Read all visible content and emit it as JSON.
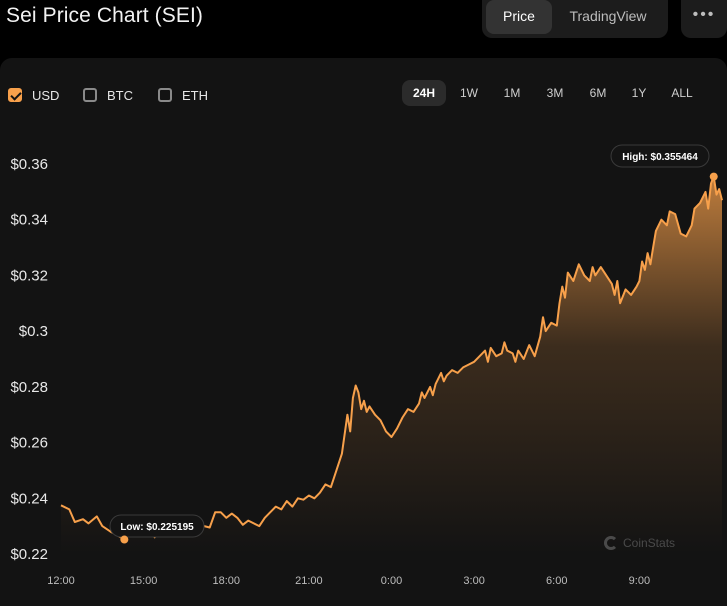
{
  "header": {
    "title": "Sei Price Chart (SEI)",
    "view_tabs": [
      {
        "label": "Price",
        "active": true
      },
      {
        "label": "TradingView",
        "active": false
      }
    ],
    "more_label": "•••"
  },
  "currencies": [
    {
      "label": "USD",
      "checked": true
    },
    {
      "label": "BTC",
      "checked": false
    },
    {
      "label": "ETH",
      "checked": false
    }
  ],
  "ranges": [
    {
      "label": "24H",
      "active": true
    },
    {
      "label": "1W",
      "active": false
    },
    {
      "label": "1M",
      "active": false
    },
    {
      "label": "3M",
      "active": false
    },
    {
      "label": "6M",
      "active": false
    },
    {
      "label": "1Y",
      "active": false
    },
    {
      "label": "ALL",
      "active": false
    }
  ],
  "watermark": "CoinStats",
  "colors": {
    "accent": "#f7a04b",
    "panel": "#131313",
    "background": "#000000"
  },
  "chart_data": {
    "type": "area",
    "title": "",
    "xlabel": "",
    "ylabel": "",
    "ylim": [
      0.22,
      0.36
    ],
    "y_ticks": [
      "$0.36",
      "$0.34",
      "$0.32",
      "$0.3",
      "$0.28",
      "$0.26",
      "$0.24",
      "$0.22"
    ],
    "y_tick_values": [
      0.36,
      0.34,
      0.32,
      0.3,
      0.28,
      0.26,
      0.24,
      0.22
    ],
    "x_ticks": [
      "12:00",
      "15:00",
      "18:00",
      "21:00",
      "0:00",
      "3:00",
      "6:00",
      "9:00"
    ],
    "x_tick_hours": [
      0,
      3,
      6,
      9,
      12,
      15,
      18,
      21
    ],
    "xlim_hours": [
      0,
      24
    ],
    "series": [
      {
        "points": [
          [
            0.0,
            0.2375
          ],
          [
            0.3,
            0.236
          ],
          [
            0.5,
            0.2315
          ],
          [
            0.8,
            0.2325
          ],
          [
            1.0,
            0.231
          ],
          [
            1.3,
            0.2335
          ],
          [
            1.5,
            0.23
          ],
          [
            1.8,
            0.228
          ],
          [
            2.0,
            0.227
          ],
          [
            2.3,
            0.2252
          ],
          [
            2.5,
            0.228
          ],
          [
            2.8,
            0.231
          ],
          [
            3.0,
            0.2285
          ],
          [
            3.2,
            0.231
          ],
          [
            3.4,
            0.226
          ],
          [
            3.6,
            0.229
          ],
          [
            3.8,
            0.23
          ],
          [
            4.0,
            0.228
          ],
          [
            4.2,
            0.229
          ],
          [
            4.4,
            0.23
          ],
          [
            4.6,
            0.228
          ],
          [
            4.8,
            0.229
          ],
          [
            5.0,
            0.231
          ],
          [
            5.2,
            0.23
          ],
          [
            5.4,
            0.2295
          ],
          [
            5.6,
            0.235
          ],
          [
            5.8,
            0.235
          ],
          [
            6.0,
            0.233
          ],
          [
            6.2,
            0.2345
          ],
          [
            6.4,
            0.233
          ],
          [
            6.6,
            0.2305
          ],
          [
            6.8,
            0.232
          ],
          [
            7.0,
            0.231
          ],
          [
            7.2,
            0.23
          ],
          [
            7.4,
            0.233
          ],
          [
            7.6,
            0.235
          ],
          [
            7.8,
            0.237
          ],
          [
            8.0,
            0.236
          ],
          [
            8.2,
            0.239
          ],
          [
            8.4,
            0.237
          ],
          [
            8.6,
            0.24
          ],
          [
            8.8,
            0.2395
          ],
          [
            9.0,
            0.241
          ],
          [
            9.2,
            0.24
          ],
          [
            9.4,
            0.242
          ],
          [
            9.6,
            0.245
          ],
          [
            9.8,
            0.244
          ],
          [
            10.0,
            0.25
          ],
          [
            10.2,
            0.256
          ],
          [
            10.4,
            0.27
          ],
          [
            10.5,
            0.264
          ],
          [
            10.6,
            0.276
          ],
          [
            10.7,
            0.2805
          ],
          [
            10.8,
            0.278
          ],
          [
            10.9,
            0.272
          ],
          [
            11.0,
            0.275
          ],
          [
            11.1,
            0.271
          ],
          [
            11.2,
            0.273
          ],
          [
            11.4,
            0.27
          ],
          [
            11.6,
            0.268
          ],
          [
            11.8,
            0.264
          ],
          [
            12.0,
            0.262
          ],
          [
            12.2,
            0.265
          ],
          [
            12.4,
            0.269
          ],
          [
            12.6,
            0.272
          ],
          [
            12.8,
            0.271
          ],
          [
            13.0,
            0.274
          ],
          [
            13.1,
            0.278
          ],
          [
            13.2,
            0.276
          ],
          [
            13.4,
            0.28
          ],
          [
            13.5,
            0.277
          ],
          [
            13.6,
            0.281
          ],
          [
            13.8,
            0.285
          ],
          [
            13.9,
            0.282
          ],
          [
            14.0,
            0.284
          ],
          [
            14.2,
            0.286
          ],
          [
            14.4,
            0.285
          ],
          [
            14.6,
            0.287
          ],
          [
            14.8,
            0.288
          ],
          [
            15.0,
            0.289
          ],
          [
            15.2,
            0.291
          ],
          [
            15.4,
            0.293
          ],
          [
            15.5,
            0.289
          ],
          [
            15.6,
            0.294
          ],
          [
            15.8,
            0.291
          ],
          [
            16.0,
            0.292
          ],
          [
            16.1,
            0.296
          ],
          [
            16.2,
            0.293
          ],
          [
            16.4,
            0.292
          ],
          [
            16.5,
            0.289
          ],
          [
            16.6,
            0.293
          ],
          [
            16.8,
            0.29
          ],
          [
            17.0,
            0.295
          ],
          [
            17.2,
            0.291
          ],
          [
            17.4,
            0.298
          ],
          [
            17.5,
            0.305
          ],
          [
            17.6,
            0.3
          ],
          [
            17.8,
            0.303
          ],
          [
            18.0,
            0.302
          ],
          [
            18.1,
            0.31
          ],
          [
            18.2,
            0.316
          ],
          [
            18.3,
            0.312
          ],
          [
            18.4,
            0.321
          ],
          [
            18.6,
            0.318
          ],
          [
            18.8,
            0.324
          ],
          [
            19.0,
            0.32
          ],
          [
            19.2,
            0.318
          ],
          [
            19.3,
            0.323
          ],
          [
            19.4,
            0.32
          ],
          [
            19.6,
            0.323
          ],
          [
            19.8,
            0.32
          ],
          [
            20.0,
            0.317
          ],
          [
            20.1,
            0.313
          ],
          [
            20.2,
            0.318
          ],
          [
            20.3,
            0.31
          ],
          [
            20.5,
            0.315
          ],
          [
            20.7,
            0.313
          ],
          [
            20.9,
            0.316
          ],
          [
            21.0,
            0.318
          ],
          [
            21.1,
            0.325
          ],
          [
            21.2,
            0.322
          ],
          [
            21.3,
            0.328
          ],
          [
            21.4,
            0.324
          ],
          [
            21.5,
            0.33
          ],
          [
            21.6,
            0.336
          ],
          [
            21.8,
            0.34
          ],
          [
            22.0,
            0.338
          ],
          [
            22.1,
            0.343
          ],
          [
            22.3,
            0.342
          ],
          [
            22.5,
            0.335
          ],
          [
            22.7,
            0.334
          ],
          [
            22.9,
            0.338
          ],
          [
            23.0,
            0.344
          ],
          [
            23.2,
            0.346
          ],
          [
            23.4,
            0.35
          ],
          [
            23.5,
            0.344
          ],
          [
            23.6,
            0.353
          ],
          [
            23.7,
            0.3555
          ],
          [
            23.8,
            0.349
          ],
          [
            23.9,
            0.351
          ],
          [
            24.0,
            0.347
          ]
        ]
      }
    ],
    "annotations": {
      "high": {
        "label": "High: $0.355464",
        "hour": 23.7,
        "value": 0.355464
      },
      "low": {
        "label": "Low: $0.225195",
        "hour": 2.3,
        "value": 0.225195
      }
    }
  }
}
